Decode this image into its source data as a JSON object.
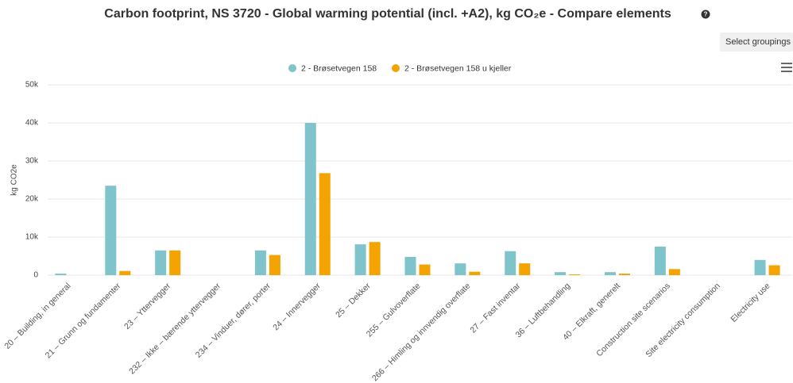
{
  "chart_data": {
    "type": "bar",
    "title": "Carbon footprint, NS 3720 - Global warming potential (incl. +A2), kg CO₂e - Compare elements",
    "ylabel": "kg CO2e",
    "categories": [
      "20 – Building, in general",
      "21 – Grunn og fundamenter",
      "23 – Yttervegger",
      "232 – Ikke – bærende yttervegger",
      "234 – Vinduer, dører, porter",
      "24 – Innervegger",
      "25 – Dekker",
      "255 – Gulvoverflate",
      "266 – Himling og innvendig overflate",
      "27 – Fast inventar",
      "36 – Luftbehandling",
      "40 – Elkraft, generelt",
      "Construction site scenarios",
      "Site electricity consumption",
      "Electricity use"
    ],
    "series": [
      {
        "name": "2 - Brøsetvegen 158",
        "color": "#7fc3cb",
        "values": [
          400,
          23500,
          6500,
          0,
          6500,
          40000,
          8100,
          4800,
          3100,
          6300,
          800,
          800,
          7500,
          0,
          4000
        ]
      },
      {
        "name": "2 - Brøsetvegen 158 u kjeller",
        "color": "#f5a300",
        "values": [
          0,
          1100,
          6500,
          0,
          5300,
          26800,
          8700,
          2800,
          900,
          3100,
          200,
          400,
          1600,
          0,
          2600
        ]
      }
    ],
    "ylim": [
      0,
      50000
    ],
    "yticks": [
      0,
      {
        "value": 10000,
        "label": "10k"
      },
      {
        "value": 20000,
        "label": "20k"
      },
      {
        "value": 30000,
        "label": "30k"
      },
      {
        "value": 40000,
        "label": "40k"
      },
      {
        "value": 50000,
        "label": "50k"
      }
    ],
    "grid": true,
    "legend": "top"
  },
  "ui": {
    "button": "Select groupings"
  }
}
